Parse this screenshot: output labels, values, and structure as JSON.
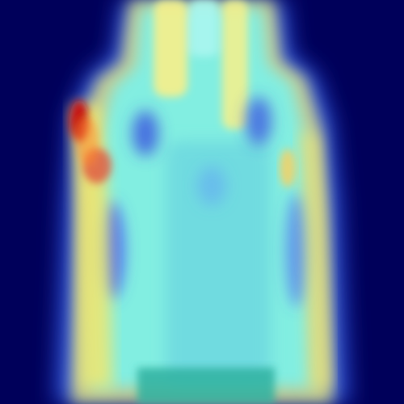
{
  "image": {
    "kind": "heatmap-overlay",
    "colormap": "jet",
    "subject": "garment-silhouette",
    "colors": {
      "background": "#00005a",
      "low": "#1a1aa8",
      "mid_low": "#4fa0ff",
      "mid": "#7ef0e6",
      "mid_high": "#f3ee74",
      "high": "#d01a12"
    }
  }
}
